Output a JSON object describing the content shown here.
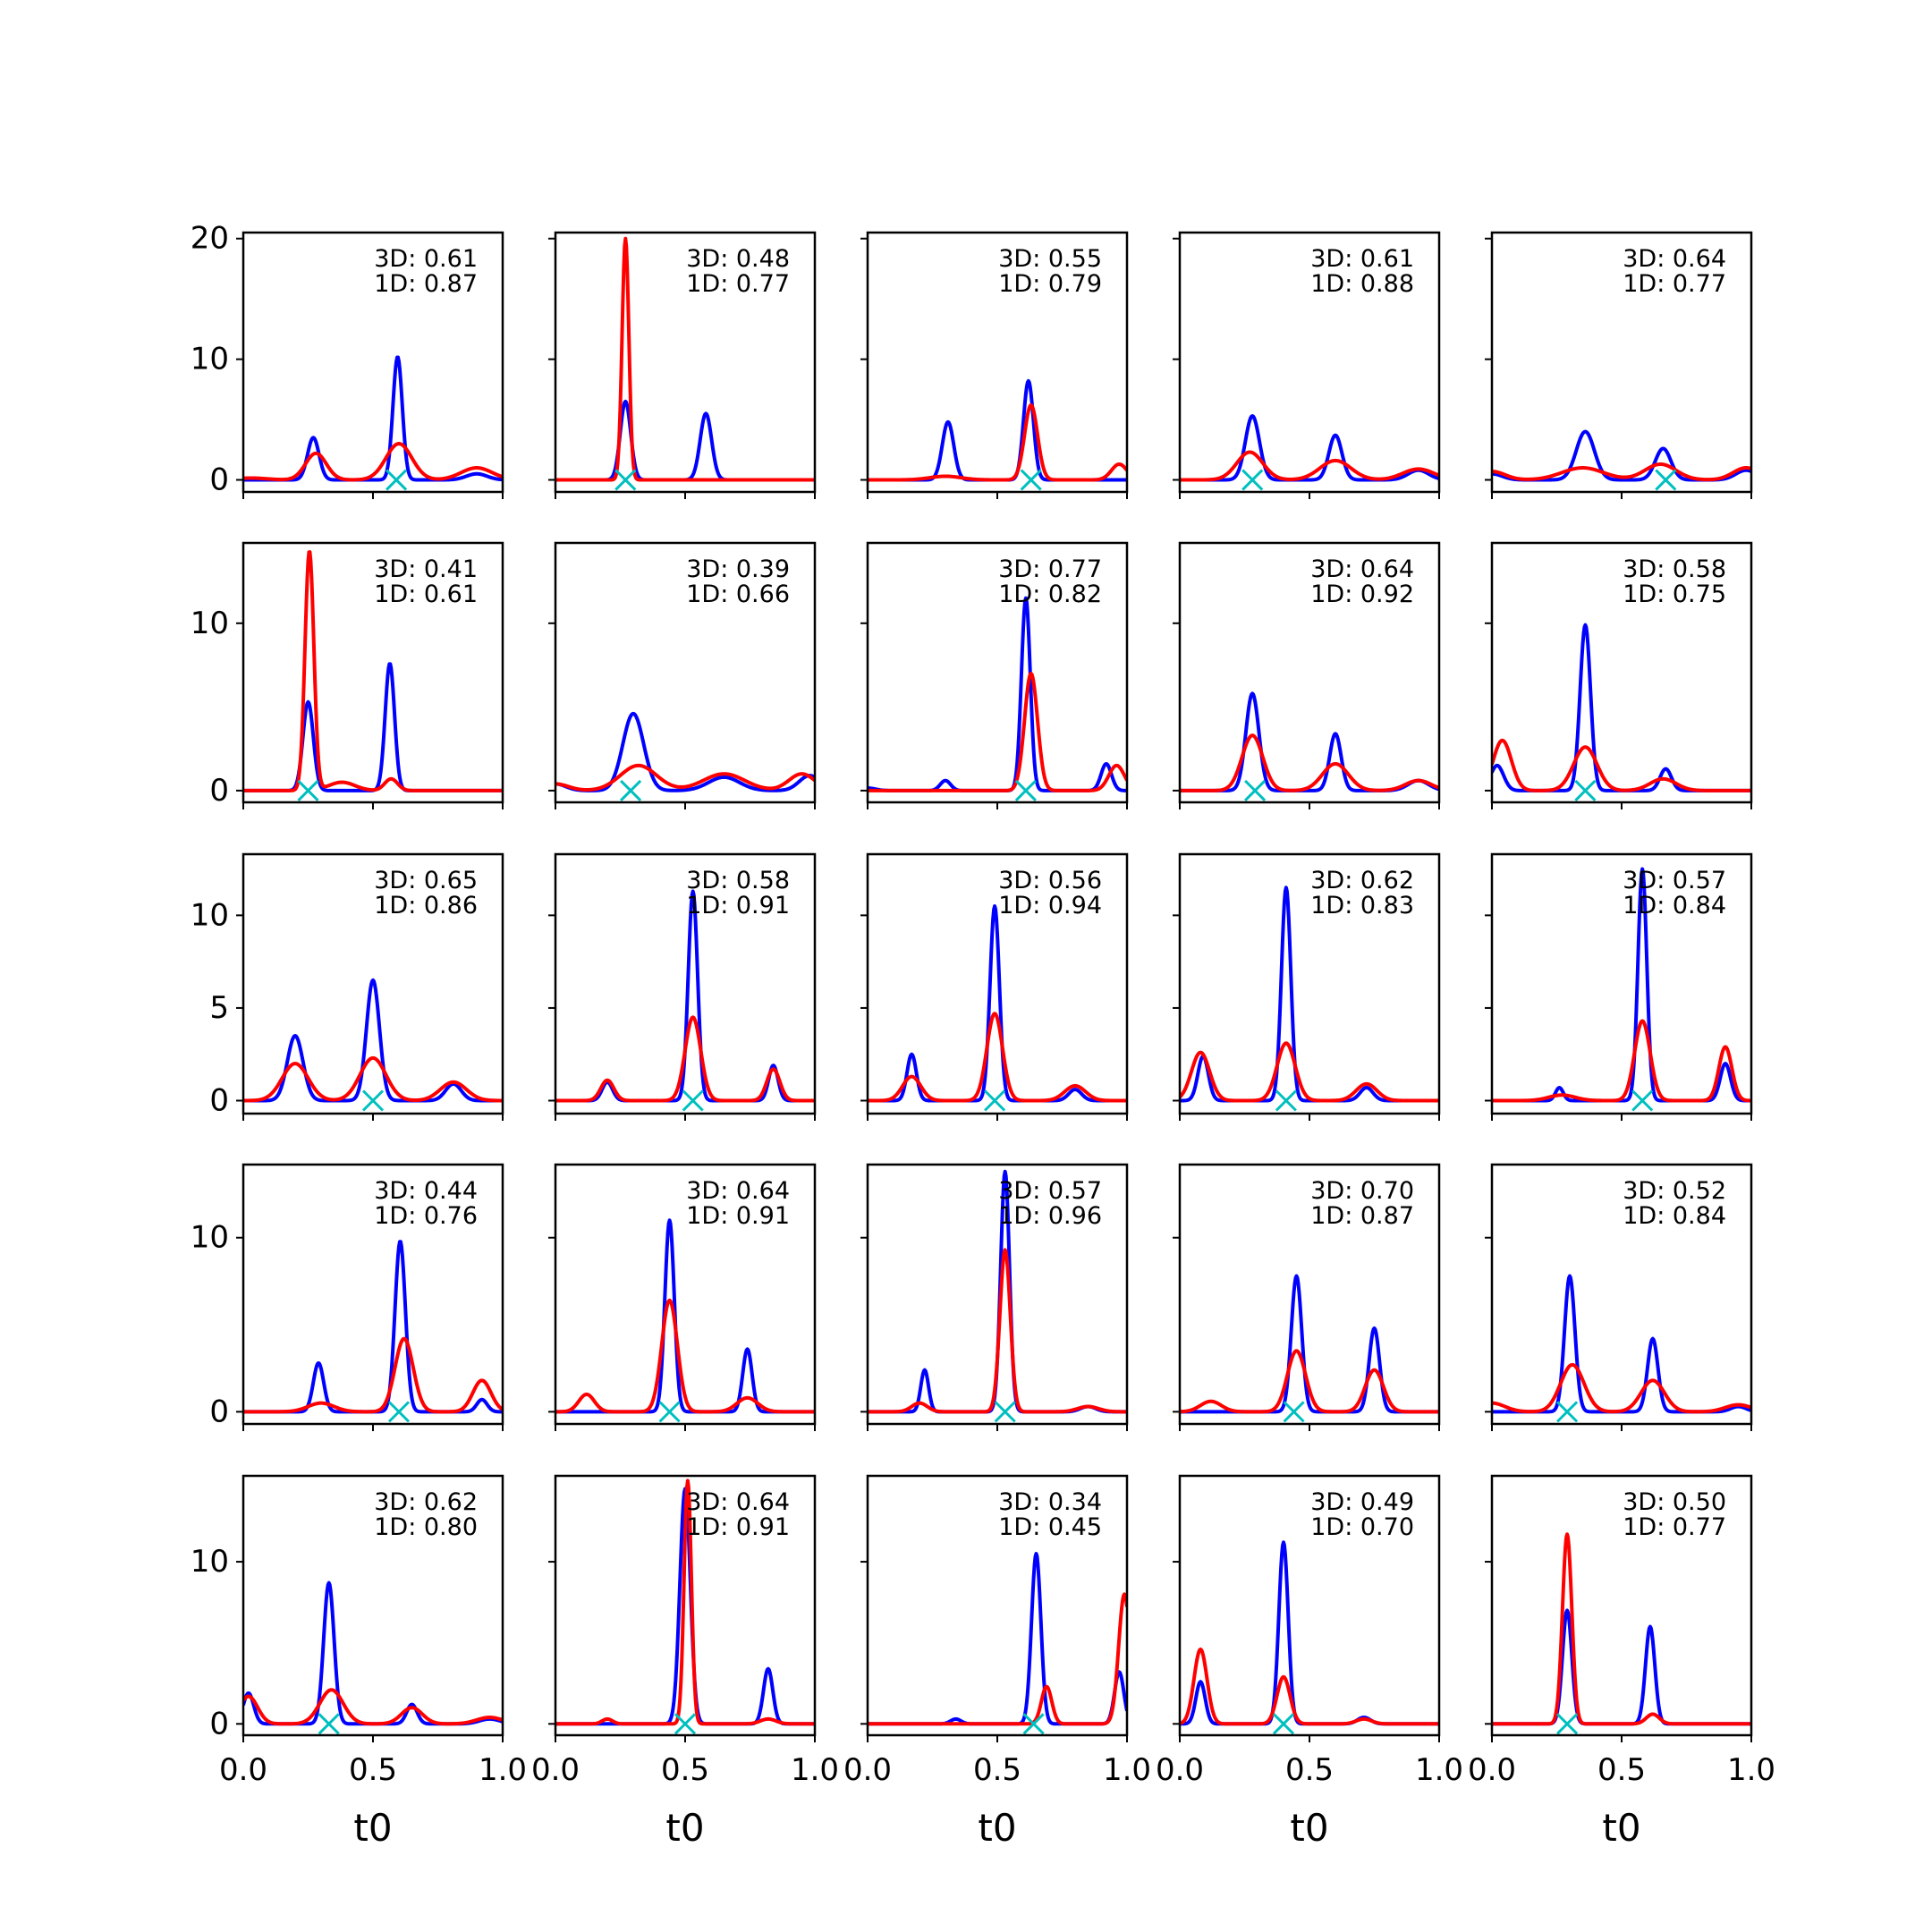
{
  "chart_data": {
    "type": "line",
    "layout": {
      "rows": 5,
      "cols": 5
    },
    "xlabel": "t0",
    "xlim": [
      0.0,
      1.0
    ],
    "xticks": [
      0.0,
      0.5,
      1.0
    ],
    "xtick_labels": [
      "0.0",
      "0.5",
      "1.0"
    ],
    "colors": {
      "series_3d": "#0000ff",
      "series_1d": "#ff0000",
      "marker": "#00bfbf"
    },
    "rows": [
      {
        "ylim": [
          -1,
          20.5
        ],
        "yticks": [
          0,
          10,
          20
        ],
        "ytick_labels": [
          "0",
          "10",
          "20"
        ]
      },
      {
        "ylim": [
          -0.7,
          14.8
        ],
        "yticks": [
          0,
          10
        ],
        "ytick_labels": [
          "0",
          "10"
        ]
      },
      {
        "ylim": [
          -0.7,
          13.3
        ],
        "yticks": [
          0,
          5,
          10
        ],
        "ytick_labels": [
          "0",
          "5",
          "10"
        ]
      },
      {
        "ylim": [
          -0.7,
          14.2
        ],
        "yticks": [
          0,
          10
        ],
        "ytick_labels": [
          "0",
          "10"
        ]
      },
      {
        "ylim": [
          -0.7,
          15.3
        ],
        "yticks": [
          0,
          10
        ],
        "ytick_labels": [
          "0",
          "10"
        ]
      }
    ],
    "panels": [
      {
        "label_3d": "3D: 0.61",
        "label_1d": "1D: 0.87",
        "marker_x": 0.59,
        "blue": [
          [
            0.27,
            3.5,
            0.022
          ],
          [
            0.595,
            10.2,
            0.018
          ],
          [
            0.9,
            0.5,
            0.04
          ]
        ],
        "red": [
          [
            0.03,
            0.15,
            0.06
          ],
          [
            0.28,
            2.2,
            0.04
          ],
          [
            0.6,
            3.0,
            0.05
          ],
          [
            0.9,
            1.0,
            0.06
          ]
        ]
      },
      {
        "label_3d": "3D: 0.48",
        "label_1d": "1D: 0.77",
        "marker_x": 0.27,
        "blue": [
          [
            0.27,
            6.5,
            0.02
          ],
          [
            0.58,
            5.5,
            0.022
          ]
        ],
        "red": [
          [
            0.27,
            20,
            0.013
          ]
        ]
      },
      {
        "label_3d": "3D: 0.55",
        "label_1d": "1D: 0.79",
        "marker_x": 0.63,
        "blue": [
          [
            0.31,
            4.8,
            0.022
          ],
          [
            0.62,
            8.2,
            0.019
          ]
        ],
        "red": [
          [
            0.3,
            0.3,
            0.06
          ],
          [
            0.63,
            6.2,
            0.025
          ],
          [
            0.97,
            1.3,
            0.03
          ]
        ]
      },
      {
        "label_3d": "3D: 0.61",
        "label_1d": "1D: 0.88",
        "marker_x": 0.28,
        "blue": [
          [
            0.28,
            5.3,
            0.027
          ],
          [
            0.6,
            3.7,
            0.025
          ],
          [
            0.92,
            0.8,
            0.04
          ]
        ],
        "red": [
          [
            0.27,
            2.3,
            0.05
          ],
          [
            0.6,
            1.6,
            0.06
          ],
          [
            0.92,
            0.9,
            0.06
          ]
        ]
      },
      {
        "label_3d": "3D: 0.64",
        "label_1d": "1D: 0.77",
        "marker_x": 0.67,
        "blue": [
          [
            0.0,
            0.5,
            0.04
          ],
          [
            0.36,
            4.0,
            0.035
          ],
          [
            0.66,
            2.6,
            0.03
          ],
          [
            0.98,
            0.8,
            0.04
          ]
        ],
        "red": [
          [
            0.0,
            0.7,
            0.05
          ],
          [
            0.35,
            1.0,
            0.08
          ],
          [
            0.65,
            1.3,
            0.06
          ],
          [
            0.98,
            1.0,
            0.05
          ]
        ]
      },
      {
        "label_3d": "3D: 0.41",
        "label_1d": "1D: 0.61",
        "marker_x": 0.25,
        "blue": [
          [
            0.25,
            5.3,
            0.02
          ],
          [
            0.565,
            7.6,
            0.018
          ]
        ],
        "red": [
          [
            0.255,
            14.3,
            0.017
          ],
          [
            0.38,
            0.5,
            0.05
          ],
          [
            0.57,
            0.7,
            0.025
          ]
        ]
      },
      {
        "label_3d": "3D: 0.39",
        "label_1d": "1D: 0.66",
        "marker_x": 0.29,
        "blue": [
          [
            0.0,
            0.4,
            0.04
          ],
          [
            0.3,
            4.6,
            0.04
          ],
          [
            0.65,
            0.8,
            0.06
          ],
          [
            0.98,
            0.9,
            0.04
          ]
        ],
        "red": [
          [
            0.0,
            0.4,
            0.05
          ],
          [
            0.32,
            1.5,
            0.07
          ],
          [
            0.65,
            1.0,
            0.08
          ],
          [
            0.95,
            1.0,
            0.05
          ]
        ]
      },
      {
        "label_3d": "3D: 0.77",
        "label_1d": "1D: 0.82",
        "marker_x": 0.61,
        "blue": [
          [
            0.0,
            0.15,
            0.03
          ],
          [
            0.3,
            0.6,
            0.02
          ],
          [
            0.61,
            11.5,
            0.017
          ],
          [
            0.92,
            1.6,
            0.02
          ]
        ],
        "red": [
          [
            0.63,
            7.0,
            0.025
          ],
          [
            0.96,
            1.5,
            0.03
          ]
        ]
      },
      {
        "label_3d": "3D: 0.64",
        "label_1d": "1D: 0.92",
        "marker_x": 0.29,
        "blue": [
          [
            0.28,
            5.8,
            0.025
          ],
          [
            0.6,
            3.4,
            0.022
          ],
          [
            0.92,
            0.6,
            0.04
          ]
        ],
        "red": [
          [
            0.28,
            3.3,
            0.04
          ],
          [
            0.6,
            1.6,
            0.05
          ],
          [
            0.92,
            0.6,
            0.05
          ]
        ]
      },
      {
        "label_3d": "3D: 0.58",
        "label_1d": "1D: 0.75",
        "marker_x": 0.36,
        "blue": [
          [
            0.02,
            1.5,
            0.025
          ],
          [
            0.36,
            9.9,
            0.02
          ],
          [
            0.67,
            1.3,
            0.022
          ]
        ],
        "red": [
          [
            0.04,
            3.0,
            0.035
          ],
          [
            0.36,
            2.6,
            0.045
          ],
          [
            0.66,
            0.7,
            0.05
          ]
        ]
      },
      {
        "label_3d": "3D: 0.65",
        "label_1d": "1D: 0.86",
        "marker_x": 0.5,
        "blue": [
          [
            0.2,
            3.5,
            0.03
          ],
          [
            0.5,
            6.5,
            0.025
          ],
          [
            0.81,
            0.9,
            0.03
          ]
        ],
        "red": [
          [
            0.2,
            2.0,
            0.05
          ],
          [
            0.5,
            2.3,
            0.05
          ],
          [
            0.81,
            1.0,
            0.05
          ]
        ]
      },
      {
        "label_3d": "3D: 0.58",
        "label_1d": "1D: 0.91",
        "marker_x": 0.53,
        "blue": [
          [
            0.2,
            1.0,
            0.02
          ],
          [
            0.53,
            11.3,
            0.018
          ],
          [
            0.84,
            1.9,
            0.018
          ]
        ],
        "red": [
          [
            0.2,
            1.1,
            0.025
          ],
          [
            0.53,
            4.5,
            0.03
          ],
          [
            0.84,
            1.7,
            0.025
          ]
        ]
      },
      {
        "label_3d": "3D: 0.56",
        "label_1d": "1D: 0.94",
        "marker_x": 0.49,
        "blue": [
          [
            0.17,
            2.5,
            0.018
          ],
          [
            0.49,
            10.5,
            0.018
          ],
          [
            0.8,
            0.6,
            0.025
          ]
        ],
        "red": [
          [
            0.17,
            1.3,
            0.035
          ],
          [
            0.49,
            4.7,
            0.03
          ],
          [
            0.8,
            0.8,
            0.04
          ]
        ]
      },
      {
        "label_3d": "3D: 0.62",
        "label_1d": "1D: 0.83",
        "marker_x": 0.41,
        "blue": [
          [
            0.09,
            2.4,
            0.02
          ],
          [
            0.41,
            11.5,
            0.018
          ],
          [
            0.72,
            0.7,
            0.025
          ]
        ],
        "red": [
          [
            0.08,
            2.6,
            0.035
          ],
          [
            0.41,
            3.1,
            0.035
          ],
          [
            0.72,
            0.9,
            0.04
          ]
        ]
      },
      {
        "label_3d": "3D: 0.57",
        "label_1d": "1D: 0.84",
        "marker_x": 0.58,
        "blue": [
          [
            0.26,
            0.7,
            0.015
          ],
          [
            0.58,
            12.5,
            0.017
          ],
          [
            0.9,
            2.0,
            0.02
          ]
        ],
        "red": [
          [
            0.27,
            0.3,
            0.05
          ],
          [
            0.58,
            4.3,
            0.03
          ],
          [
            0.9,
            2.9,
            0.025
          ]
        ]
      },
      {
        "label_3d": "3D: 0.44",
        "label_1d": "1D: 0.76",
        "marker_x": 0.6,
        "blue": [
          [
            0.29,
            2.8,
            0.02
          ],
          [
            0.605,
            9.8,
            0.02
          ],
          [
            0.92,
            0.7,
            0.02
          ]
        ],
        "red": [
          [
            0.3,
            0.5,
            0.05
          ],
          [
            0.62,
            4.2,
            0.035
          ],
          [
            0.92,
            1.8,
            0.035
          ]
        ]
      },
      {
        "label_3d": "3D: 0.64",
        "label_1d": "1D: 0.91",
        "marker_x": 0.44,
        "blue": [
          [
            0.44,
            11.0,
            0.018
          ],
          [
            0.74,
            3.6,
            0.018
          ]
        ],
        "red": [
          [
            0.12,
            1.0,
            0.03
          ],
          [
            0.44,
            6.4,
            0.03
          ],
          [
            0.74,
            0.8,
            0.04
          ]
        ]
      },
      {
        "label_3d": "3D: 0.57",
        "label_1d": "1D: 0.96",
        "marker_x": 0.53,
        "blue": [
          [
            0.22,
            2.4,
            0.015
          ],
          [
            0.53,
            13.8,
            0.017
          ],
          [
            0.85,
            0.3,
            0.03
          ]
        ],
        "red": [
          [
            0.2,
            0.5,
            0.03
          ],
          [
            0.53,
            9.3,
            0.02
          ],
          [
            0.85,
            0.3,
            0.04
          ]
        ]
      },
      {
        "label_3d": "3D: 0.70",
        "label_1d": "1D: 0.87",
        "marker_x": 0.44,
        "blue": [
          [
            0.45,
            7.8,
            0.02
          ],
          [
            0.75,
            4.8,
            0.02
          ]
        ],
        "red": [
          [
            0.12,
            0.6,
            0.04
          ],
          [
            0.45,
            3.5,
            0.035
          ],
          [
            0.75,
            2.4,
            0.035
          ]
        ]
      },
      {
        "label_3d": "3D: 0.52",
        "label_1d": "1D: 0.84",
        "marker_x": 0.29,
        "blue": [
          [
            0.3,
            7.8,
            0.02
          ],
          [
            0.62,
            4.2,
            0.02
          ],
          [
            0.95,
            0.3,
            0.03
          ]
        ],
        "red": [
          [
            0.0,
            0.5,
            0.05
          ],
          [
            0.31,
            2.7,
            0.045
          ],
          [
            0.62,
            1.8,
            0.045
          ],
          [
            0.95,
            0.4,
            0.05
          ]
        ]
      },
      {
        "label_3d": "3D: 0.62",
        "label_1d": "1D: 0.80",
        "marker_x": 0.33,
        "blue": [
          [
            0.02,
            1.9,
            0.02
          ],
          [
            0.33,
            8.7,
            0.02
          ],
          [
            0.65,
            1.2,
            0.02
          ],
          [
            0.95,
            0.3,
            0.04
          ]
        ],
        "red": [
          [
            0.02,
            1.7,
            0.035
          ],
          [
            0.34,
            2.1,
            0.045
          ],
          [
            0.65,
            1.0,
            0.04
          ],
          [
            0.95,
            0.4,
            0.05
          ]
        ]
      },
      {
        "label_3d": "3D: 0.64",
        "label_1d": "1D: 0.91",
        "marker_x": 0.5,
        "blue": [
          [
            0.5,
            14.5,
            0.02
          ],
          [
            0.82,
            3.4,
            0.018
          ]
        ],
        "red": [
          [
            0.2,
            0.3,
            0.02
          ],
          [
            0.51,
            15.0,
            0.014
          ],
          [
            0.82,
            0.3,
            0.03
          ]
        ]
      },
      {
        "label_3d": "3D: 0.34",
        "label_1d": "1D: 0.45",
        "marker_x": 0.64,
        "blue": [
          [
            0.34,
            0.3,
            0.02
          ],
          [
            0.65,
            10.5,
            0.018
          ],
          [
            0.97,
            3.2,
            0.018
          ]
        ],
        "red": [
          [
            0.69,
            2.3,
            0.02
          ],
          [
            0.99,
            8.0,
            0.022
          ]
        ]
      },
      {
        "label_3d": "3D: 0.49",
        "label_1d": "1D: 0.70",
        "marker_x": 0.4,
        "blue": [
          [
            0.08,
            2.6,
            0.018
          ],
          [
            0.4,
            11.2,
            0.018
          ],
          [
            0.71,
            0.4,
            0.025
          ]
        ],
        "red": [
          [
            0.08,
            4.6,
            0.025
          ],
          [
            0.4,
            2.9,
            0.025
          ],
          [
            0.71,
            0.3,
            0.03
          ]
        ]
      },
      {
        "label_3d": "3D: 0.50",
        "label_1d": "1D: 0.77",
        "marker_x": 0.29,
        "blue": [
          [
            0.29,
            7.0,
            0.018
          ],
          [
            0.61,
            6.0,
            0.018
          ]
        ],
        "red": [
          [
            0.29,
            11.7,
            0.018
          ],
          [
            0.62,
            0.6,
            0.025
          ]
        ]
      }
    ]
  }
}
